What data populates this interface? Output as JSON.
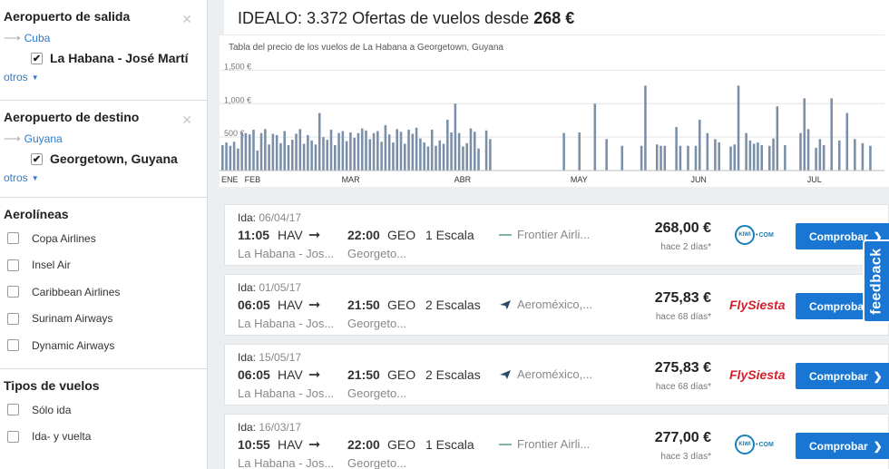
{
  "sidebar": {
    "departure": {
      "title": "Aeropuerto de salida",
      "country": "Cuba",
      "airport": "La Habana - José Martí",
      "otros": "otros"
    },
    "destination": {
      "title": "Aeropuerto de destino",
      "country": "Guyana",
      "airport": "Georgetown, Guyana",
      "otros": "otros"
    },
    "airlines": {
      "title": "Aerolíneas",
      "items": [
        "Copa Airlines",
        "Insel Air",
        "Caribbean Airlines",
        "Surinam Airways",
        "Dynamic Airways"
      ]
    },
    "flight_types": {
      "title": "Tipos de vuelos",
      "items": [
        "Sólo ida",
        "Ida- y vuelta"
      ]
    }
  },
  "header": {
    "title_prefix": "IDEALO: 3.372 Ofertas de vuelos desde",
    "title_price": "268 €",
    "chart_caption": "Tabla del precio de los vuelos de La Habana a Georgetown, Guyana"
  },
  "chart_data": {
    "type": "bar",
    "y_ticks": [
      "1,500 €",
      "1,000 €",
      "500 €"
    ],
    "y_tick_values": [
      1500,
      1000,
      500
    ],
    "ylim": [
      0,
      1750
    ],
    "month_labels": [
      "ENE",
      "FEB",
      "MAR",
      "ABR",
      "MAY",
      "JUN",
      "JUL"
    ],
    "month_index": [
      0,
      6,
      31,
      60,
      90,
      121,
      151
    ],
    "bar_color": "#7b90a8",
    "values": [
      380,
      420,
      370,
      430,
      330,
      570,
      560,
      540,
      610,
      300,
      560,
      620,
      390,
      550,
      530,
      410,
      590,
      380,
      460,
      550,
      620,
      400,
      530,
      450,
      390,
      860,
      500,
      460,
      610,
      380,
      560,
      590,
      440,
      570,
      490,
      560,
      630,
      600,
      470,
      560,
      590,
      430,
      680,
      540,
      420,
      620,
      580,
      400,
      610,
      550,
      640,
      480,
      420,
      360,
      610,
      370,
      450,
      400,
      760,
      570,
      1000,
      560,
      360,
      410,
      630,
      580,
      330,
      820,
      600,
      470,
      0,
      0,
      0,
      0,
      0,
      0,
      0,
      0,
      0,
      0,
      0,
      0,
      0,
      0,
      0,
      0,
      0,
      0,
      0,
      0,
      0,
      0,
      0,
      0,
      0,
      0,
      0,
      0,
      0,
      0,
      0,
      0,
      0,
      0,
      0,
      0,
      0,
      0,
      0,
      0,
      0,
      0,
      0,
      0,
      0,
      0,
      0,
      0,
      0,
      0,
      0,
      0,
      0,
      0,
      0,
      0,
      0,
      0,
      0,
      0,
      0,
      0,
      0,
      0,
      0,
      0,
      0,
      0,
      0,
      0,
      0,
      0,
      0,
      0,
      0,
      0,
      0,
      0,
      0,
      0,
      0,
      0,
      0,
      0,
      0,
      0,
      0,
      0,
      0,
      0,
      0
    ],
    "sparse": [
      {
        "i": 67,
        "v": 0
      },
      {
        "i": 88,
        "v": 560
      },
      {
        "i": 92,
        "v": 570
      },
      {
        "i": 96,
        "v": 1000
      },
      {
        "i": 99,
        "v": 470
      },
      {
        "i": 103,
        "v": 370
      },
      {
        "i": 108,
        "v": 370
      },
      {
        "i": 109,
        "v": 1270
      },
      {
        "i": 112,
        "v": 390
      },
      {
        "i": 113,
        "v": 370
      },
      {
        "i": 114,
        "v": 370
      },
      {
        "i": 117,
        "v": 650
      },
      {
        "i": 118,
        "v": 370
      },
      {
        "i": 120,
        "v": 370
      },
      {
        "i": 122,
        "v": 370
      },
      {
        "i": 123,
        "v": 760
      },
      {
        "i": 125,
        "v": 560
      },
      {
        "i": 127,
        "v": 470
      },
      {
        "i": 128,
        "v": 420
      },
      {
        "i": 131,
        "v": 360
      },
      {
        "i": 132,
        "v": 390
      },
      {
        "i": 133,
        "v": 1270
      },
      {
        "i": 135,
        "v": 560
      },
      {
        "i": 136,
        "v": 450
      },
      {
        "i": 137,
        "v": 400
      },
      {
        "i": 138,
        "v": 420
      },
      {
        "i": 139,
        "v": 380
      },
      {
        "i": 141,
        "v": 370
      },
      {
        "i": 142,
        "v": 480
      },
      {
        "i": 143,
        "v": 960
      },
      {
        "i": 145,
        "v": 380
      },
      {
        "i": 149,
        "v": 560
      },
      {
        "i": 150,
        "v": 1080
      },
      {
        "i": 151,
        "v": 620
      },
      {
        "i": 153,
        "v": 340
      },
      {
        "i": 154,
        "v": 470
      },
      {
        "i": 155,
        "v": 380
      },
      {
        "i": 157,
        "v": 1080
      },
      {
        "i": 159,
        "v": 450
      },
      {
        "i": 161,
        "v": 860
      },
      {
        "i": 163,
        "v": 470
      },
      {
        "i": 165,
        "v": 410
      },
      {
        "i": 167,
        "v": 370
      }
    ]
  },
  "results": [
    {
      "ida_label": "Ida:",
      "date": "06/04/17",
      "dep_time": "11:05",
      "dep_code": "HAV",
      "arr_time": "22:00",
      "arr_code": "GEO",
      "stops": "1 Escala",
      "dep_city": "La Habana - Jos...",
      "arr_city": "Georgeto...",
      "airline": "Frontier Airli...",
      "airline_icon": "line-icon",
      "price": "268,00 €",
      "ago": "hace 2 días*",
      "provider": "kiwi",
      "provider_top": "KIWI",
      "provider_text": "COM",
      "button": "Comprobar"
    },
    {
      "ida_label": "Ida:",
      "date": "01/05/17",
      "dep_time": "06:05",
      "dep_code": "HAV",
      "arr_time": "21:50",
      "arr_code": "GEO",
      "stops": "2 Escalas",
      "dep_city": "La Habana - Jos...",
      "arr_city": "Georgeto...",
      "airline": "Aeroméxico,...",
      "airline_icon": "aeromexico-icon",
      "price": "275,83 €",
      "ago": "hace 68 días*",
      "provider": "flysiesta",
      "provider_text": "FlySiesta",
      "button": "Comprobar"
    },
    {
      "ida_label": "Ida:",
      "date": "15/05/17",
      "dep_time": "06:05",
      "dep_code": "HAV",
      "arr_time": "21:50",
      "arr_code": "GEO",
      "stops": "2 Escalas",
      "dep_city": "La Habana - Jos...",
      "arr_city": "Georgeto...",
      "airline": "Aeroméxico,...",
      "airline_icon": "aeromexico-icon",
      "price": "275,83 €",
      "ago": "hace 68 días*",
      "provider": "flysiesta",
      "provider_text": "FlySiesta",
      "button": "Comprobar"
    },
    {
      "ida_label": "Ida:",
      "date": "16/03/17",
      "dep_time": "10:55",
      "dep_code": "HAV",
      "arr_time": "22:00",
      "arr_code": "GEO",
      "stops": "1 Escala",
      "dep_city": "La Habana - Jos...",
      "arr_city": "Georgeto...",
      "airline": "Frontier Airli...",
      "airline_icon": "line-icon",
      "price": "277,00 €",
      "ago": "hace 3 días*",
      "provider": "kiwi",
      "provider_top": "KIWI",
      "provider_text": "COM",
      "button": "Comprobar"
    }
  ],
  "feedback": "feedback",
  "colors": {
    "accent": "#1976d2",
    "link": "#2a7bd0",
    "flysiesta": "#d4202a"
  }
}
